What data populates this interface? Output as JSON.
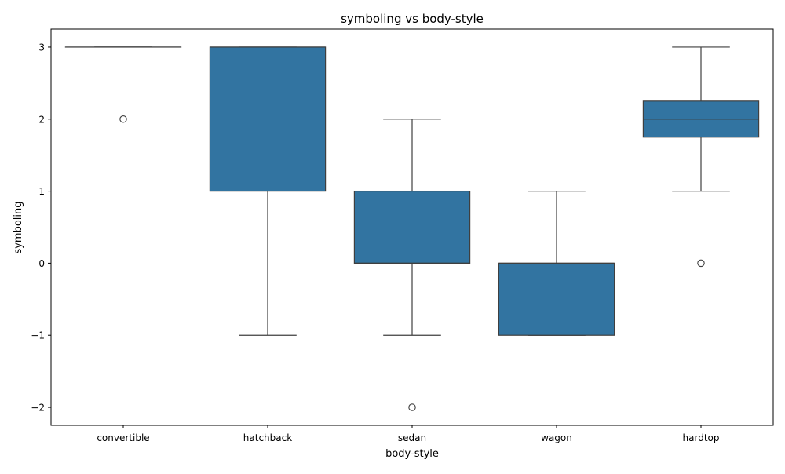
{
  "chart_data": {
    "type": "box",
    "title": "symboling vs body-style",
    "xlabel": "body-style",
    "ylabel": "symboling",
    "ylim": [
      -2.25,
      3.25
    ],
    "yticks": [
      3,
      2,
      1,
      0,
      -1,
      -2
    ],
    "ytick_labels": [
      "3",
      "2",
      "1",
      "0",
      "−1",
      "−2"
    ],
    "grid": false,
    "box_color": "#3274a1",
    "line_color": "#3f3f3f",
    "categories": [
      "convertible",
      "hatchback",
      "sedan",
      "wagon",
      "hardtop"
    ],
    "boxes": [
      {
        "category": "convertible",
        "whisker_low": 3,
        "q1": 3,
        "median": 3,
        "q3": 3,
        "whisker_high": 3,
        "outliers": [
          2
        ]
      },
      {
        "category": "hatchback",
        "whisker_low": -1,
        "q1": 1,
        "median": 3,
        "q3": 3,
        "whisker_high": 3,
        "outliers": []
      },
      {
        "category": "sedan",
        "whisker_low": -1,
        "q1": 0,
        "median": 0,
        "q3": 1,
        "whisker_high": 2,
        "outliers": [
          -2
        ]
      },
      {
        "category": "wagon",
        "whisker_low": -1,
        "q1": -1,
        "median": 0,
        "q3": 0,
        "whisker_high": 1,
        "outliers": []
      },
      {
        "category": "hardtop",
        "whisker_low": 1,
        "q1": 1.75,
        "median": 2,
        "q3": 2.25,
        "whisker_high": 3,
        "outliers": [
          0
        ]
      }
    ]
  }
}
